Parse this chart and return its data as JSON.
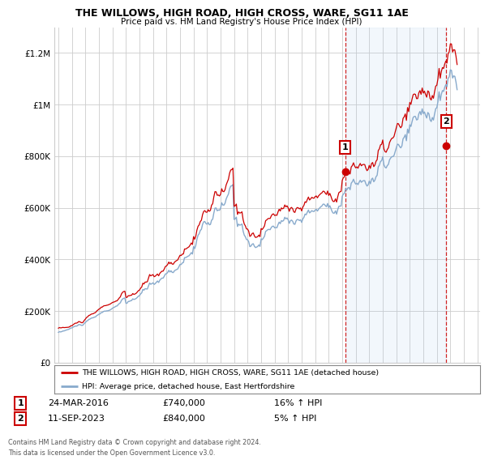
{
  "title": "THE WILLOWS, HIGH ROAD, HIGH CROSS, WARE, SG11 1AE",
  "subtitle": "Price paid vs. HM Land Registry's House Price Index (HPI)",
  "ylabel_ticks": [
    "£0",
    "£200K",
    "£400K",
    "£600K",
    "£800K",
    "£1M",
    "£1.2M"
  ],
  "ytick_values": [
    0,
    200000,
    400000,
    600000,
    800000,
    1000000,
    1200000
  ],
  "ylim": [
    0,
    1300000
  ],
  "xlim_start": 1994.7,
  "xlim_end": 2026.2,
  "red_line_color": "#cc0000",
  "blue_line_color": "#88aacc",
  "shade_color": "#ddeeff",
  "dashed_line_color": "#cc0000",
  "grid_color": "#cccccc",
  "bg_color": "#ffffff",
  "legend_label_red": "THE WILLOWS, HIGH ROAD, HIGH CROSS, WARE, SG11 1AE (detached house)",
  "legend_label_blue": "HPI: Average price, detached house, East Hertfordshire",
  "sale1_label": "1",
  "sale1_date": "24-MAR-2016",
  "sale1_price": "£740,000",
  "sale1_hpi": "16% ↑ HPI",
  "sale1_x": 2016.23,
  "sale1_y": 740000,
  "sale2_label": "2",
  "sale2_date": "11-SEP-2023",
  "sale2_price": "£840,000",
  "sale2_hpi": "5% ↑ HPI",
  "sale2_x": 2023.7,
  "sale2_y": 840000,
  "footer": "Contains HM Land Registry data © Crown copyright and database right 2024.\nThis data is licensed under the Open Government Licence v3.0."
}
